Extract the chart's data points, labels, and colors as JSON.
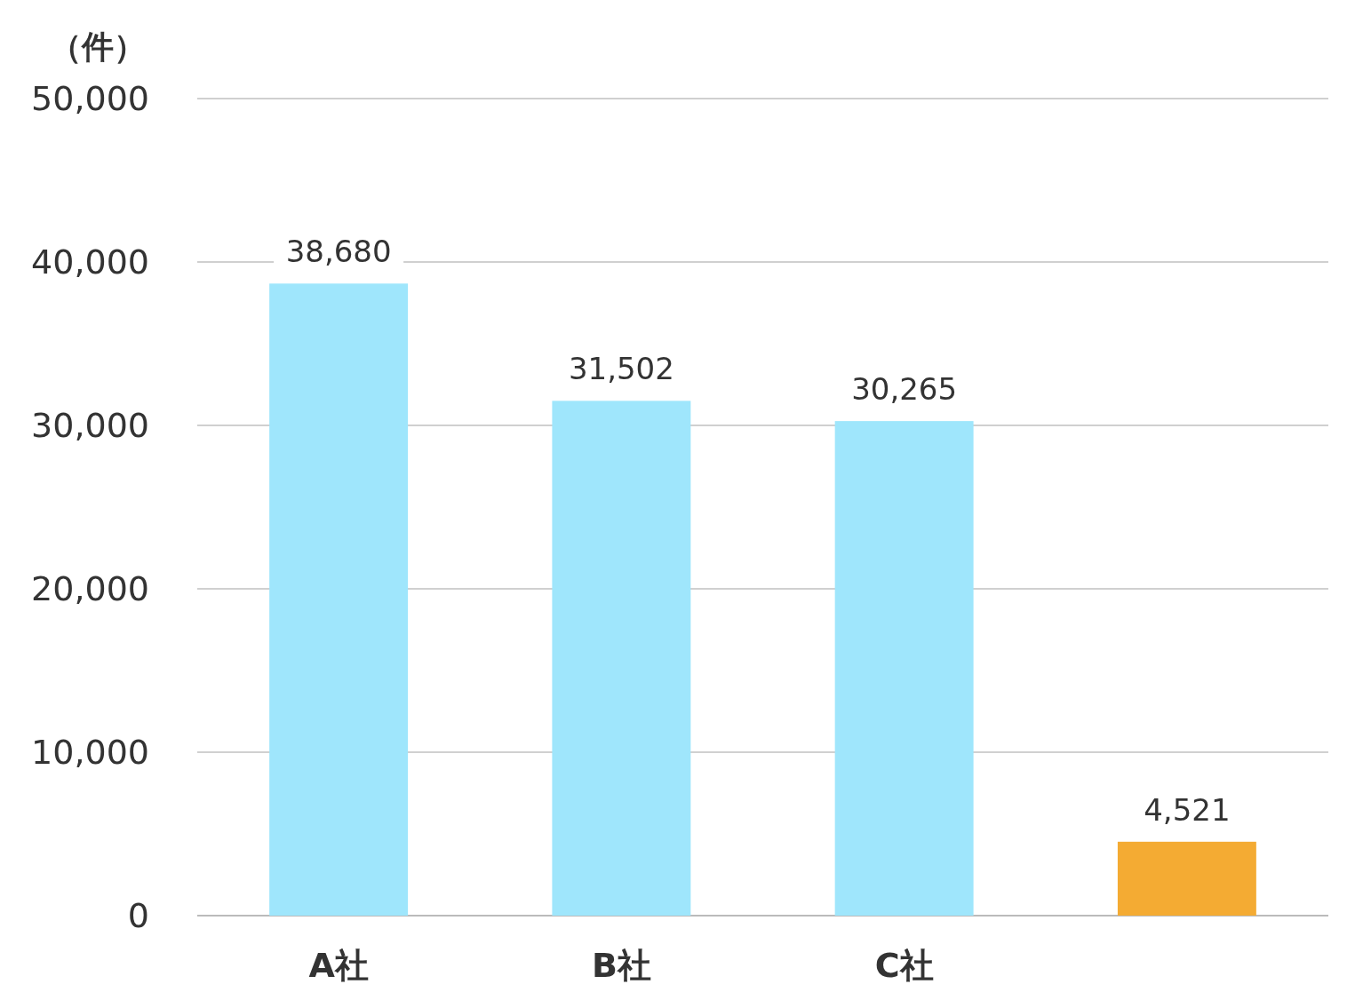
{
  "chart_data": {
    "type": "bar",
    "ylabel": "（件）",
    "categories": [
      "A社",
      "B社",
      "C社",
      null
    ],
    "values": [
      38680,
      31502,
      30265,
      4521
    ],
    "colors": [
      "#9fe6fc",
      "#9fe6fc",
      "#9fe6fc",
      "#f4ab33"
    ],
    "value_labels": [
      "38,680",
      "31,502",
      "30,265",
      "4,521"
    ],
    "ylim": [
      0,
      50000
    ],
    "yticks": [
      {
        "value": 0,
        "label": "0"
      },
      {
        "value": 10000,
        "label": "10,000"
      },
      {
        "value": 20000,
        "label": "20,000"
      },
      {
        "value": 30000,
        "label": "30,000"
      },
      {
        "value": 40000,
        "label": "40,000"
      },
      {
        "value": 50000,
        "label": "50,000"
      }
    ],
    "grid": "y"
  }
}
